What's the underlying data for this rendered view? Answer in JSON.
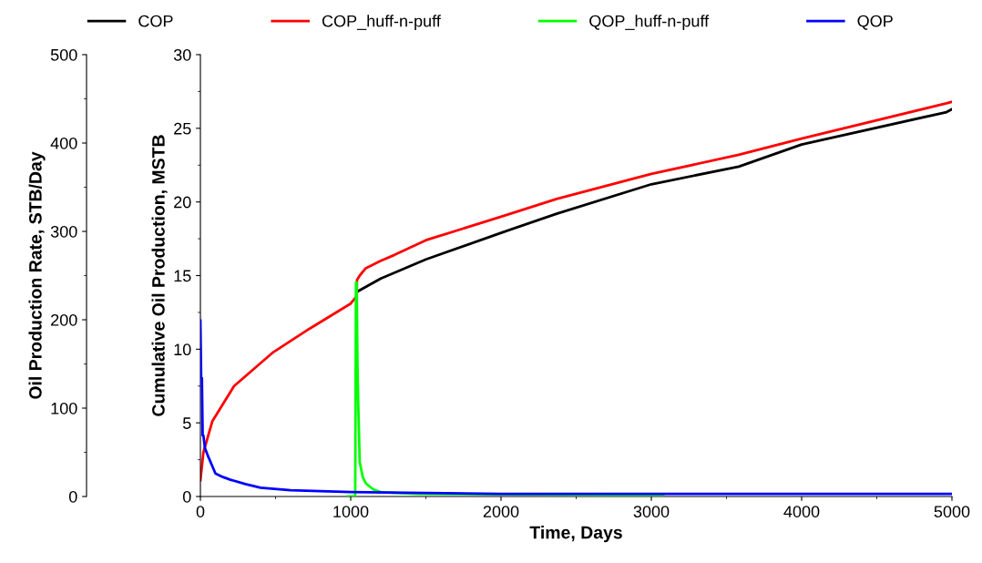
{
  "chart_data": {
    "type": "line",
    "xlabel": "Time, Days",
    "ylabel": "Cumulative Oil Production, MSTB",
    "y2label": "Oil Production Rate, STB/Day",
    "xlim": [
      0,
      5000
    ],
    "xticks": [
      0,
      1000,
      2000,
      3000,
      4000,
      5000
    ],
    "ylim": [
      0,
      30
    ],
    "yticks": [
      0,
      5,
      10,
      15,
      20,
      25,
      30
    ],
    "y2lim": [
      0,
      500
    ],
    "y2ticks": [
      0,
      100,
      200,
      300,
      400,
      500
    ],
    "grid": false,
    "legend": "top",
    "marker": "none",
    "line_style": "solid",
    "series": [
      {
        "name": "COP",
        "color": "#000000",
        "x": [
          1042,
          1200,
          1500,
          2000,
          2370,
          3000,
          3582,
          4000,
          4964,
          5000
        ],
        "values": [
          13.9,
          14.8,
          16.1,
          17.9,
          19.2,
          21.2,
          22.4,
          23.9,
          26.1,
          26.3
        ]
      },
      {
        "name": "COP_huff-n-puff",
        "color": "#ff0000",
        "x": [
          0,
          20,
          79,
          224,
          485,
          727,
          1000,
          1040,
          1042,
          1060,
          1100,
          1200,
          1291,
          1500,
          2000,
          2370,
          3000,
          3582,
          4000,
          4964,
          5000
        ],
        "values": [
          1.1,
          3.0,
          5.1,
          7.5,
          9.8,
          11.4,
          13.1,
          13.6,
          14.7,
          15.0,
          15.5,
          16.0,
          16.4,
          17.4,
          19.0,
          20.2,
          21.9,
          23.2,
          24.3,
          26.7,
          26.8
        ]
      },
      {
        "name": "QOP_huff-n-puff",
        "color": "#00ff00",
        "axis": "y2",
        "x": [
          980,
          1030,
          1035,
          1040,
          1045,
          1050,
          1060,
          1080,
          1100,
          1150,
          1200,
          1300,
          1450,
          2700,
          3080
        ],
        "values": [
          0,
          0,
          242,
          242,
          150,
          105,
          39,
          22,
          15,
          8,
          5,
          4,
          3,
          2,
          2
        ]
      },
      {
        "name": "QOP",
        "color": "#0000ff",
        "axis": "y2",
        "x": [
          0,
          5,
          10,
          15,
          20,
          30,
          50,
          100,
          150,
          200,
          300,
          400,
          600,
          1000,
          1500,
          2000,
          3000,
          5000
        ],
        "values": [
          199,
          134,
          134,
          69,
          69,
          55,
          46,
          26,
          22,
          19,
          14,
          10,
          7,
          5,
          4,
          3,
          3,
          3
        ]
      }
    ]
  }
}
